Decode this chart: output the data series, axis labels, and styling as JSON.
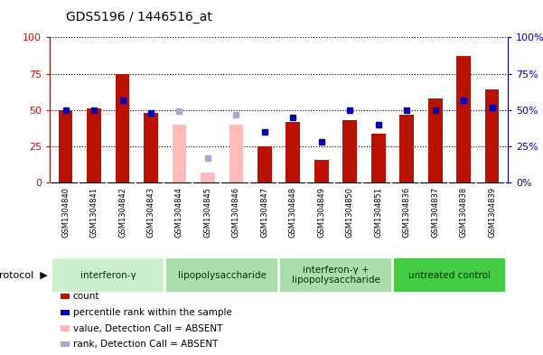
{
  "title": "GDS5196 / 1446516_at",
  "samples": [
    "GSM1304840",
    "GSM1304841",
    "GSM1304842",
    "GSM1304843",
    "GSM1304844",
    "GSM1304845",
    "GSM1304846",
    "GSM1304847",
    "GSM1304848",
    "GSM1304849",
    "GSM1304850",
    "GSM1304851",
    "GSM1304836",
    "GSM1304837",
    "GSM1304838",
    "GSM1304839"
  ],
  "count_values": [
    50,
    51,
    75,
    48,
    40,
    7,
    40,
    25,
    42,
    16,
    43,
    34,
    47,
    58,
    87,
    64
  ],
  "rank_values": [
    50,
    50,
    57,
    48,
    49,
    17,
    47,
    35,
    45,
    28,
    50,
    40,
    50,
    50,
    57,
    52
  ],
  "absent": [
    false,
    false,
    false,
    false,
    true,
    true,
    true,
    false,
    false,
    false,
    false,
    false,
    false,
    false,
    false,
    false
  ],
  "protocols": [
    {
      "label": "interferon-γ",
      "start": 0,
      "end": 4,
      "color": "#cceecc"
    },
    {
      "label": "lipopolysaccharide",
      "start": 4,
      "end": 8,
      "color": "#aaddaa"
    },
    {
      "label": "interferon-γ +\nlipopolysaccharide",
      "start": 8,
      "end": 12,
      "color": "#aaddaa"
    },
    {
      "label": "untreated control",
      "start": 12,
      "end": 16,
      "color": "#44cc44"
    }
  ],
  "bar_color_present": "#bb1100",
  "bar_color_absent": "#ffbbbb",
  "rank_color_present": "#0000bb",
  "rank_color_absent": "#aaaacc",
  "yticks": [
    0,
    25,
    50,
    75,
    100
  ],
  "legend_items": [
    {
      "color": "#bb1100",
      "label": "count"
    },
    {
      "color": "#0000bb",
      "label": "percentile rank within the sample"
    },
    {
      "color": "#ffbbbb",
      "label": "value, Detection Call = ABSENT"
    },
    {
      "color": "#aaaacc",
      "label": "rank, Detection Call = ABSENT"
    }
  ]
}
